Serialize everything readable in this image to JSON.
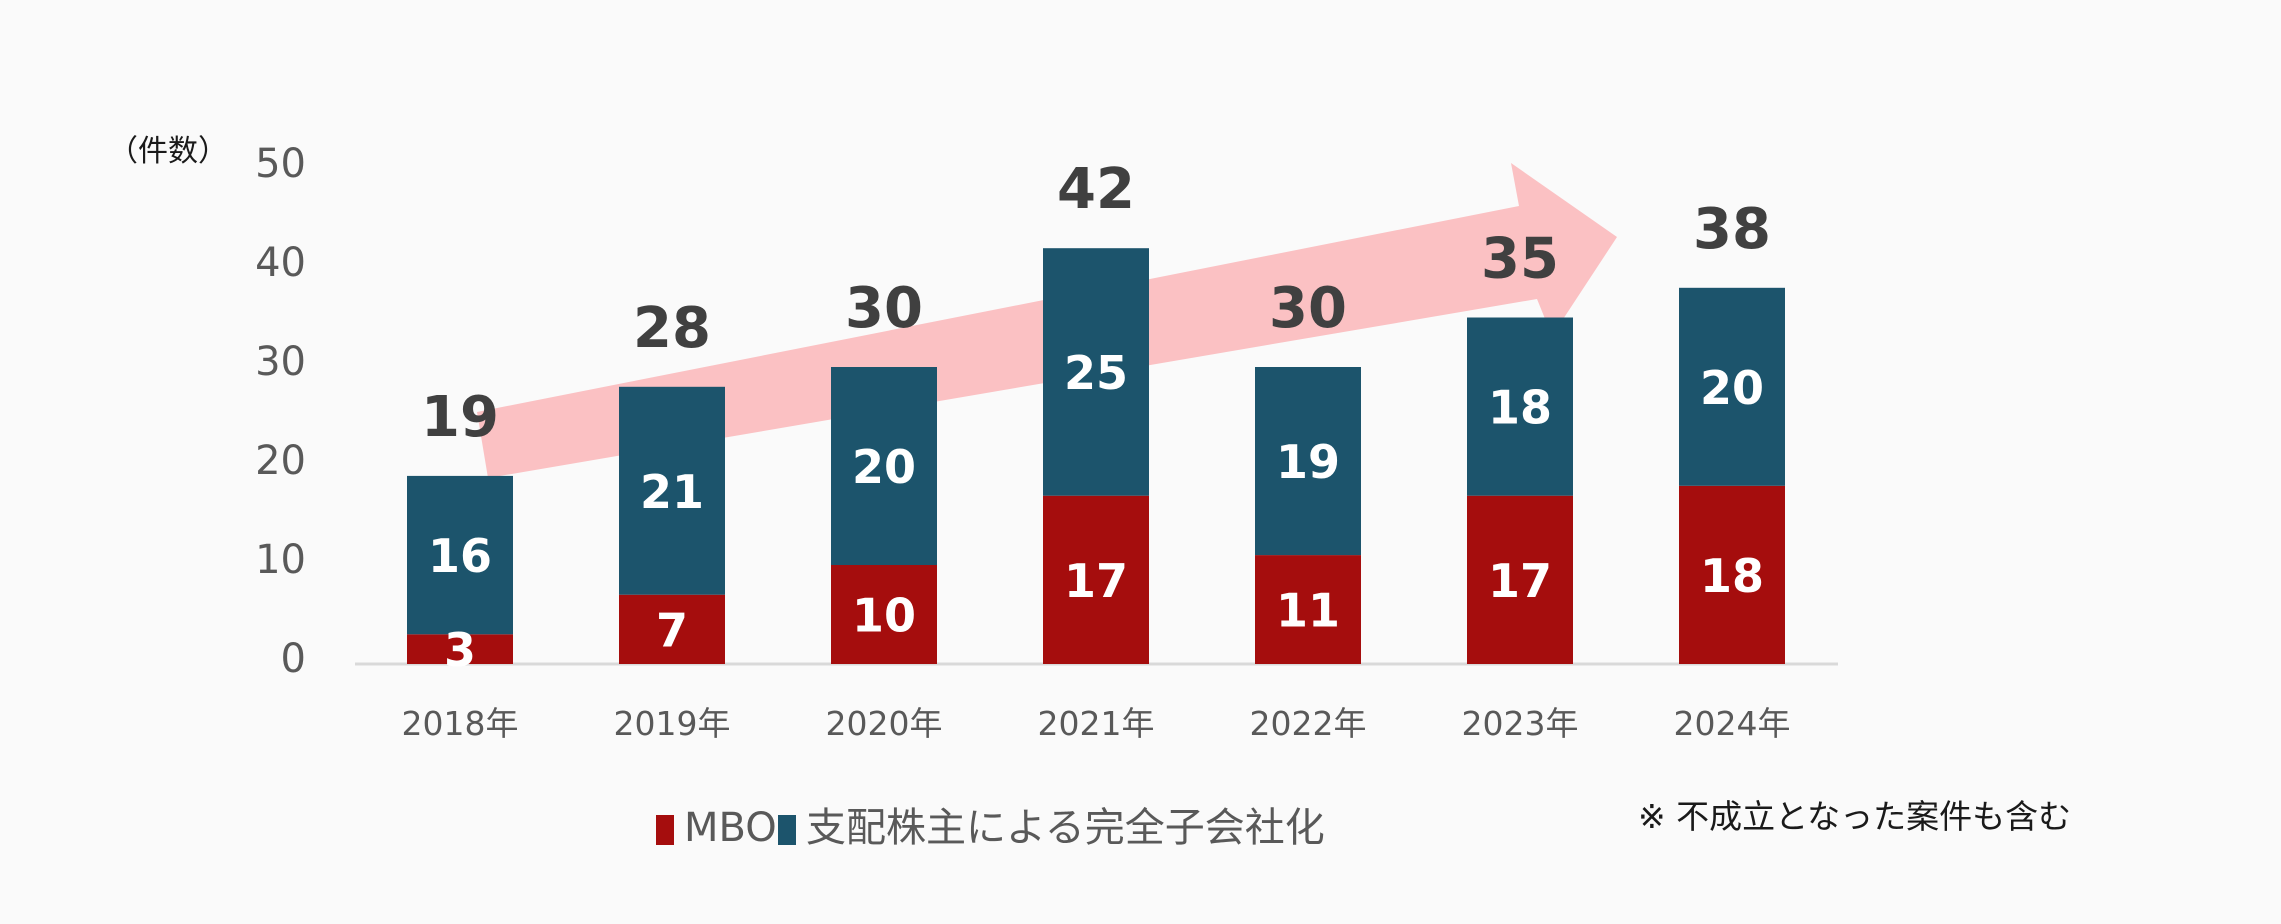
{
  "chart_data": {
    "type": "bar",
    "stacked": true,
    "categories": [
      "2018年",
      "2019年",
      "2020年",
      "2021年",
      "2022年",
      "2023年",
      "2024年"
    ],
    "series": [
      {
        "name": "MBO",
        "color": "#A50D0D",
        "values": [
          3,
          7,
          10,
          17,
          11,
          17,
          18
        ]
      },
      {
        "name": "支配株主による完全子会社化",
        "color": "#1C546C",
        "values": [
          16,
          21,
          20,
          25,
          19,
          18,
          20
        ]
      }
    ],
    "totals": [
      19,
      28,
      30,
      42,
      30,
      35,
      38
    ],
    "ylabel": "（件数）",
    "ylim": [
      0,
      50
    ],
    "yticks": [
      0,
      10,
      20,
      30,
      40,
      50
    ],
    "grid": false,
    "legend_position": "bottom",
    "annotation": "※ 不成立となった案件も含む",
    "trend_arrow": {
      "color": "#FBC1C3",
      "direction": "up-right",
      "meaning": "increasing trend"
    },
    "colors": {
      "total_label": "#404040",
      "axis_text": "#595959",
      "axis_line": "#D9D9D9",
      "background": "#FAFAFA"
    }
  }
}
